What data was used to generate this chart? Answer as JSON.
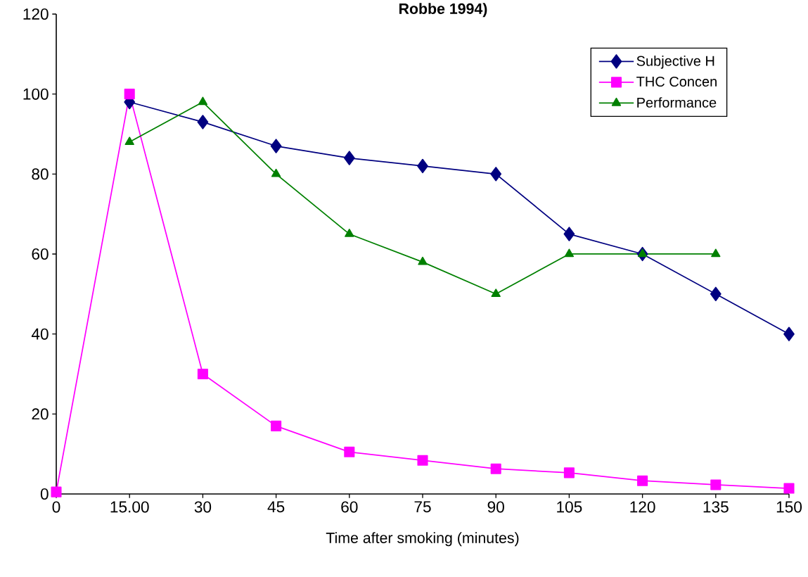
{
  "chart_data": {
    "type": "line",
    "title": "Robbe 1994)",
    "xlabel": "Time after smoking (minutes)",
    "x": [
      0,
      15,
      30,
      45,
      60,
      75,
      90,
      105,
      120,
      135,
      150
    ],
    "xlim": [
      0,
      150
    ],
    "xticks": [
      0,
      {
        "value": 15,
        "label": "15.00"
      },
      30,
      45,
      60,
      75,
      90,
      105,
      120,
      135,
      150
    ],
    "ylim": [
      0,
      120
    ],
    "yticks": [
      0,
      20,
      40,
      60,
      80,
      100,
      120
    ],
    "legend": "top right",
    "line_style": "solid",
    "series": [
      {
        "name": "Subjective H",
        "color": "#000080",
        "marker": "diamond",
        "values": [
          null,
          98,
          93,
          87,
          84,
          82,
          80,
          65,
          60,
          50,
          40
        ]
      },
      {
        "name": "THC Concen",
        "color": "#ff00ff",
        "marker": "square",
        "values": [
          0.5,
          100,
          30,
          17,
          10.5,
          8.4,
          6.3,
          5.3,
          3.3,
          2.3,
          1.4
        ]
      },
      {
        "name": "Performance",
        "color": "#008000",
        "marker": "triangle",
        "values": [
          null,
          88,
          98,
          80,
          65,
          58,
          50,
          60,
          60,
          60,
          null
        ]
      }
    ]
  }
}
